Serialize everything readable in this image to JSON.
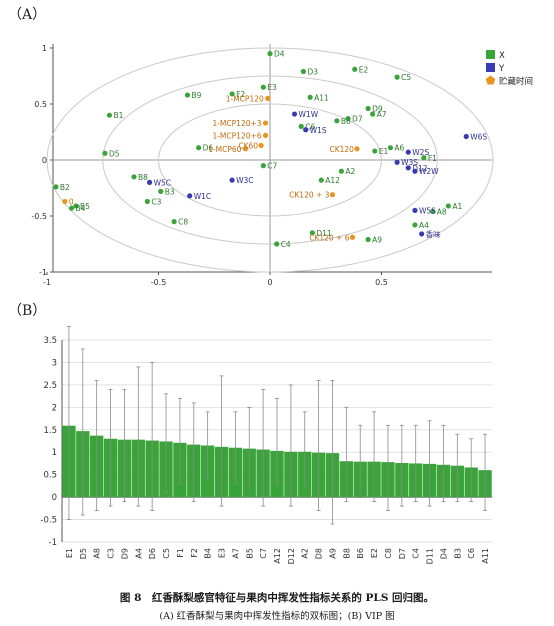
{
  "panel_labels": {
    "a": "（A）",
    "b": "（B）"
  },
  "caption": {
    "line1": "图 8　红香酥梨感官特征与果肉中挥发性指标关系的 PLS 回归图。",
    "line2": "(A) 红香酥梨与果肉中挥发性指标的双标图；(B) VIP 图"
  },
  "chart_data": [
    {
      "type": "scatter",
      "title": "",
      "xlabel": "",
      "ylabel": "",
      "xlim": [
        -1,
        1
      ],
      "ylim": [
        -1,
        1
      ],
      "xticks": [
        "-1",
        "-0.5",
        "0",
        "0.5"
      ],
      "yticks": [
        "1",
        "0.5",
        "0",
        "-0.5",
        "-1"
      ],
      "legend": {
        "position": "top-right",
        "entries": [
          {
            "name": "X",
            "color": "#3aa43a",
            "shape": "square"
          },
          {
            "name": "Y",
            "color": "#3a3ab4",
            "shape": "square"
          },
          {
            "name": "贮藏时间",
            "color": "#e8941e",
            "shape": "pentagon"
          }
        ]
      },
      "ellipses": [
        "r2=1.0",
        "r2=0.75",
        "r2=0.5"
      ],
      "series": [
        {
          "name": "X",
          "color": "#3aa43a",
          "points": [
            {
              "label": "D4",
              "x": 0.0,
              "y": 0.95
            },
            {
              "label": "E2",
              "x": 0.38,
              "y": 0.81
            },
            {
              "label": "D3",
              "x": 0.15,
              "y": 0.79
            },
            {
              "label": "C5",
              "x": 0.57,
              "y": 0.74
            },
            {
              "label": "F2",
              "x": -0.17,
              "y": 0.59
            },
            {
              "label": "E3",
              "x": -0.03,
              "y": 0.65
            },
            {
              "label": "B9",
              "x": -0.37,
              "y": 0.58
            },
            {
              "label": "A11",
              "x": 0.18,
              "y": 0.56
            },
            {
              "label": "B1",
              "x": -0.72,
              "y": 0.4
            },
            {
              "label": "D9",
              "x": 0.44,
              "y": 0.46
            },
            {
              "label": "A7",
              "x": 0.46,
              "y": 0.41
            },
            {
              "label": "D7",
              "x": 0.35,
              "y": 0.37
            },
            {
              "label": "B6",
              "x": 0.3,
              "y": 0.35
            },
            {
              "label": "C6",
              "x": 0.14,
              "y": 0.3
            },
            {
              "label": "D6",
              "x": -0.32,
              "y": 0.11
            },
            {
              "label": "D5",
              "x": -0.74,
              "y": 0.06
            },
            {
              "label": "A6",
              "x": 0.54,
              "y": 0.11
            },
            {
              "label": "E1",
              "x": 0.47,
              "y": 0.08
            },
            {
              "label": "F1",
              "x": 0.69,
              "y": 0.02
            },
            {
              "label": "C7",
              "x": -0.03,
              "y": -0.05
            },
            {
              "label": "A2",
              "x": 0.32,
              "y": -0.1
            },
            {
              "label": "A12",
              "x": 0.23,
              "y": -0.18
            },
            {
              "label": "B8",
              "x": -0.61,
              "y": -0.15
            },
            {
              "label": "B3",
              "x": -0.49,
              "y": -0.28
            },
            {
              "label": "C3",
              "x": -0.55,
              "y": -0.37
            },
            {
              "label": "B2",
              "x": -0.96,
              "y": -0.24
            },
            {
              "label": "B5",
              "x": -0.87,
              "y": -0.41
            },
            {
              "label": "B4",
              "x": -0.89,
              "y": -0.43
            },
            {
              "label": "C8",
              "x": -0.43,
              "y": -0.55
            },
            {
              "label": "A1",
              "x": 0.8,
              "y": -0.41
            },
            {
              "label": "A8",
              "x": 0.73,
              "y": -0.46
            },
            {
              "label": "A4",
              "x": 0.65,
              "y": -0.58
            },
            {
              "label": "D11",
              "x": 0.19,
              "y": -0.65
            },
            {
              "label": "C4",
              "x": 0.03,
              "y": -0.75
            },
            {
              "label": "A9",
              "x": 0.44,
              "y": -0.71
            }
          ]
        },
        {
          "name": "Y",
          "color": "#3a3ab4",
          "points": [
            {
              "label": "W1W",
              "x": 0.11,
              "y": 0.41
            },
            {
              "label": "W1S",
              "x": 0.16,
              "y": 0.27
            },
            {
              "label": "W6S",
              "x": 0.88,
              "y": 0.21
            },
            {
              "label": "W2S",
              "x": 0.62,
              "y": 0.07
            },
            {
              "label": "W3S",
              "x": 0.57,
              "y": -0.02
            },
            {
              "label": "D12",
              "x": 0.62,
              "y": -0.07
            },
            {
              "label": "W2W",
              "x": 0.65,
              "y": -0.1
            },
            {
              "label": "W5C",
              "x": -0.54,
              "y": -0.2
            },
            {
              "label": "W3C",
              "x": -0.17,
              "y": -0.18
            },
            {
              "label": "W1C",
              "x": -0.36,
              "y": -0.32
            },
            {
              "label": "W5S",
              "x": 0.65,
              "y": -0.45
            },
            {
              "label": "香味",
              "x": 0.68,
              "y": -0.66
            }
          ]
        },
        {
          "name": "贮藏时间",
          "color": "#e8941e",
          "points": [
            {
              "label": "1-MCP120",
              "x": -0.01,
              "y": 0.55
            },
            {
              "label": "1-MCP120+3",
              "x": -0.02,
              "y": 0.33
            },
            {
              "label": "1-MCP120+6",
              "x": -0.02,
              "y": 0.22
            },
            {
              "label": "1-MCP60",
              "x": -0.11,
              "y": 0.1
            },
            {
              "label": "CK60",
              "x": -0.04,
              "y": 0.13
            },
            {
              "label": "CK120",
              "x": 0.39,
              "y": 0.1
            },
            {
              "label": "CK120 + 3",
              "x": 0.28,
              "y": -0.31
            },
            {
              "label": "CK120 + 6",
              "x": 0.37,
              "y": -0.69
            },
            {
              "label": "0",
              "x": -0.92,
              "y": -0.37
            }
          ]
        }
      ]
    },
    {
      "type": "bar",
      "title": "",
      "xlabel": "",
      "ylabel": "",
      "ylim": [
        -1,
        3.5
      ],
      "yticks": [
        "3.5",
        "3",
        "2.5",
        "2",
        "1.5",
        "1",
        "0.5",
        "0",
        "-0.5",
        "-1"
      ],
      "bar_color": "#3aa43a",
      "categories": [
        "E1",
        "D5",
        "A8",
        "C3",
        "D9",
        "A4",
        "D6",
        "C5",
        "F1",
        "F2",
        "B4",
        "E3",
        "A7",
        "B5",
        "C7",
        "A12",
        "D12",
        "A2",
        "D8",
        "A9",
        "B8",
        "B6",
        "E2",
        "C8",
        "D7",
        "C4",
        "D11",
        "D4",
        "B3",
        "C6",
        "A11"
      ],
      "values": [
        1.59,
        1.47,
        1.37,
        1.3,
        1.28,
        1.28,
        1.26,
        1.24,
        1.21,
        1.17,
        1.15,
        1.12,
        1.1,
        1.08,
        1.06,
        1.03,
        1.01,
        1.01,
        0.99,
        0.98,
        0.8,
        0.79,
        0.79,
        0.78,
        0.76,
        0.75,
        0.74,
        0.72,
        0.7,
        0.66,
        0.6
      ],
      "errors": [
        [
          -0.5,
          3.8
        ],
        [
          -0.4,
          3.3
        ],
        [
          -0.3,
          2.6
        ],
        [
          -0.2,
          2.4
        ],
        [
          -0.1,
          2.4
        ],
        [
          -0.2,
          2.9
        ],
        [
          -0.3,
          3.0
        ],
        [
          0.1,
          2.3
        ],
        [
          0.3,
          2.2
        ],
        [
          -0.1,
          2.1
        ],
        [
          0.4,
          1.9
        ],
        [
          -0.2,
          2.7
        ],
        [
          0.3,
          1.9
        ],
        [
          0.2,
          2.0
        ],
        [
          -0.2,
          2.4
        ],
        [
          0.3,
          2.2
        ],
        [
          -0.2,
          2.5
        ],
        [
          0.2,
          1.9
        ],
        [
          -0.3,
          2.6
        ],
        [
          -0.6,
          2.6
        ],
        [
          -0.1,
          2.0
        ],
        [
          0.1,
          1.6
        ],
        [
          -0.1,
          1.9
        ],
        [
          -0.3,
          1.6
        ],
        [
          -0.2,
          1.6
        ],
        [
          -0.1,
          1.6
        ],
        [
          -0.2,
          1.7
        ],
        [
          -0.1,
          1.6
        ],
        [
          -0.1,
          1.4
        ],
        [
          -0.1,
          1.3
        ],
        [
          -0.3,
          1.4
        ]
      ]
    }
  ]
}
